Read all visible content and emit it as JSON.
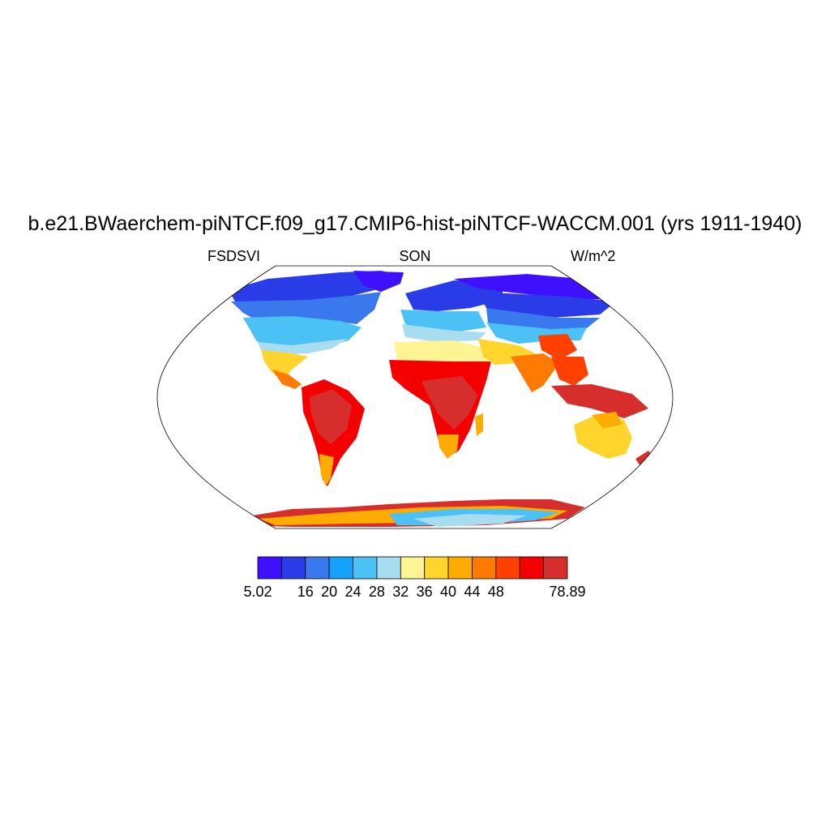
{
  "title": "b.e21.BWaerchem-piNTCF.f09_g17.CMIP6-hist-piNTCF-WACCM.001 (yrs 1911-1940)",
  "subtitle_left": "FSDSVI",
  "subtitle_center": "SON",
  "subtitle_right": "W/m^2",
  "colorbar": {
    "colors": [
      "#3f0fff",
      "#2a3ce8",
      "#3a78ee",
      "#14a2ff",
      "#4bc1f5",
      "#a8dcf0",
      "#fff493",
      "#ffd42d",
      "#ffac00",
      "#ff7a00",
      "#ff4000",
      "#f40000",
      "#d62d2d"
    ],
    "labels": [
      "5.02",
      "16",
      "20",
      "24",
      "28",
      "32",
      "36",
      "40",
      "44",
      "48",
      "78.89"
    ]
  }
}
